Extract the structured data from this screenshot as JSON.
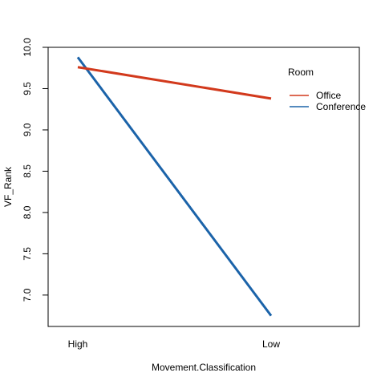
{
  "chart_data": {
    "type": "line",
    "title": "",
    "xlabel": "Movement.Classification",
    "ylabel": "VF_Rank",
    "categories": [
      "High",
      "Low"
    ],
    "ylim": [
      6.62,
      10.0
    ],
    "yticks": [
      "7.0",
      "7.5",
      "8.0",
      "8.5",
      "9.0",
      "9.5",
      "10.0"
    ],
    "grid": false,
    "legend": {
      "title": "Room",
      "position": "top-right"
    },
    "series": [
      {
        "name": "Office",
        "values": [
          9.76,
          9.38
        ],
        "color": "#d2391c"
      },
      {
        "name": "Conference",
        "values": [
          9.88,
          6.75
        ],
        "color": "#1b63a9"
      }
    ]
  }
}
